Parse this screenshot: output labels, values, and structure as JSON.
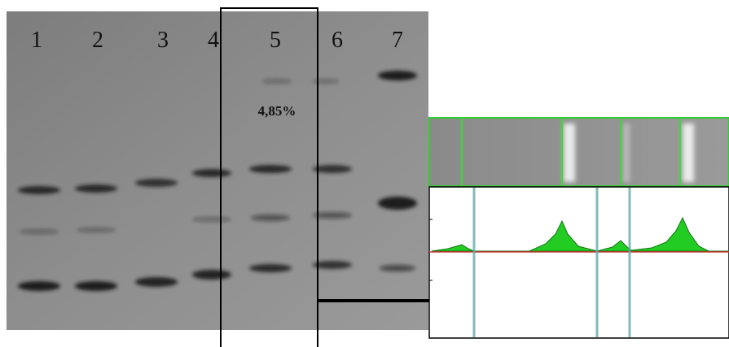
{
  "lanes": [
    "1",
    "2",
    "3",
    "4",
    "5",
    "6",
    "7"
  ],
  "annotation": "4,85%"
}
